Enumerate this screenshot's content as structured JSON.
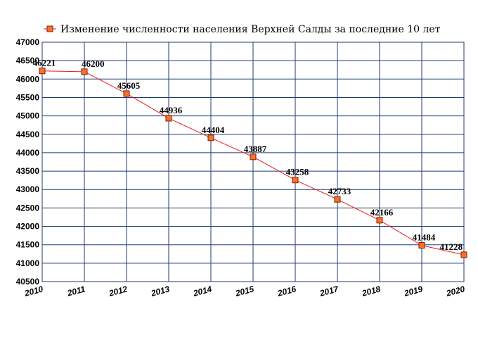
{
  "chart_data": {
    "type": "line",
    "title": "Изменение численности населения Верхней Салды за последние 10 лет",
    "x": [
      "2010",
      "2011",
      "2012",
      "2013",
      "2014",
      "2015",
      "2016",
      "2017",
      "2018",
      "2019",
      "2020"
    ],
    "series": [
      {
        "name": "Изменение численности населения Верхней Салды за последние 10 лет",
        "values": [
          46221,
          46200,
          45605,
          44936,
          44404,
          43887,
          43258,
          42733,
          42166,
          41484,
          41228
        ],
        "data_labels": [
          "46221",
          "46200",
          "45605",
          "44936",
          "44404",
          "43887",
          "43258",
          "42733",
          "42166",
          "41484",
          "41228"
        ]
      }
    ],
    "ylim": [
      40500,
      47000
    ],
    "yticks": [
      "40500",
      "41000",
      "41500",
      "42000",
      "42500",
      "43000",
      "43500",
      "44000",
      "44500",
      "45000",
      "45500",
      "46000",
      "46500",
      "47000"
    ],
    "grid": true,
    "legend": "top-left",
    "colors": {
      "line": "#e8191b",
      "marker_fill": "#f2742a",
      "marker_stroke": "#8b1a00",
      "grid": "#1f3a73"
    }
  }
}
